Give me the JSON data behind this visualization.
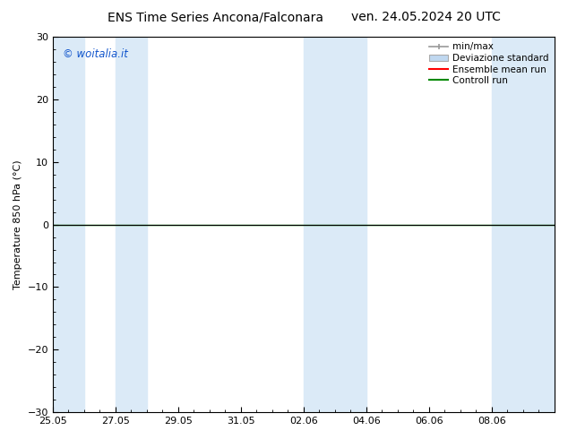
{
  "title": "ENS Time Series Ancona/Falconara",
  "title2": "ven. 24.05.2024 20 UTC",
  "ylabel": "Temperature 850 hPa (°C)",
  "ylim": [
    -30,
    30
  ],
  "yticks": [
    -30,
    -20,
    -10,
    0,
    10,
    20,
    30
  ],
  "xtick_labels": [
    "25.05",
    "27.05",
    "29.05",
    "31.05",
    "02.06",
    "04.06",
    "06.06",
    "08.06"
  ],
  "xmin": 0,
  "xmax": 16,
  "num_days": 16,
  "watermark": "© woitalia.it",
  "legend_items": [
    "min/max",
    "Deviazione standard",
    "Ensemble mean run",
    "Controll run"
  ],
  "shaded_bands": [
    [
      0,
      1
    ],
    [
      2,
      3
    ],
    [
      8,
      10
    ],
    [
      14,
      16
    ]
  ],
  "band_color": "#dbeaf7",
  "background_color": "#ffffff",
  "plot_bg_color": "#ffffff",
  "zero_line_color": "#000000",
  "ensemble_mean_color": "#ff0000",
  "control_run_color": "#008800",
  "minmax_color": "#999999",
  "std_color": "#c0d8f0",
  "title_fontsize": 10,
  "axis_fontsize": 8,
  "watermark_color": "#1155cc",
  "tick_fontsize": 8,
  "legend_fontsize": 7.5
}
